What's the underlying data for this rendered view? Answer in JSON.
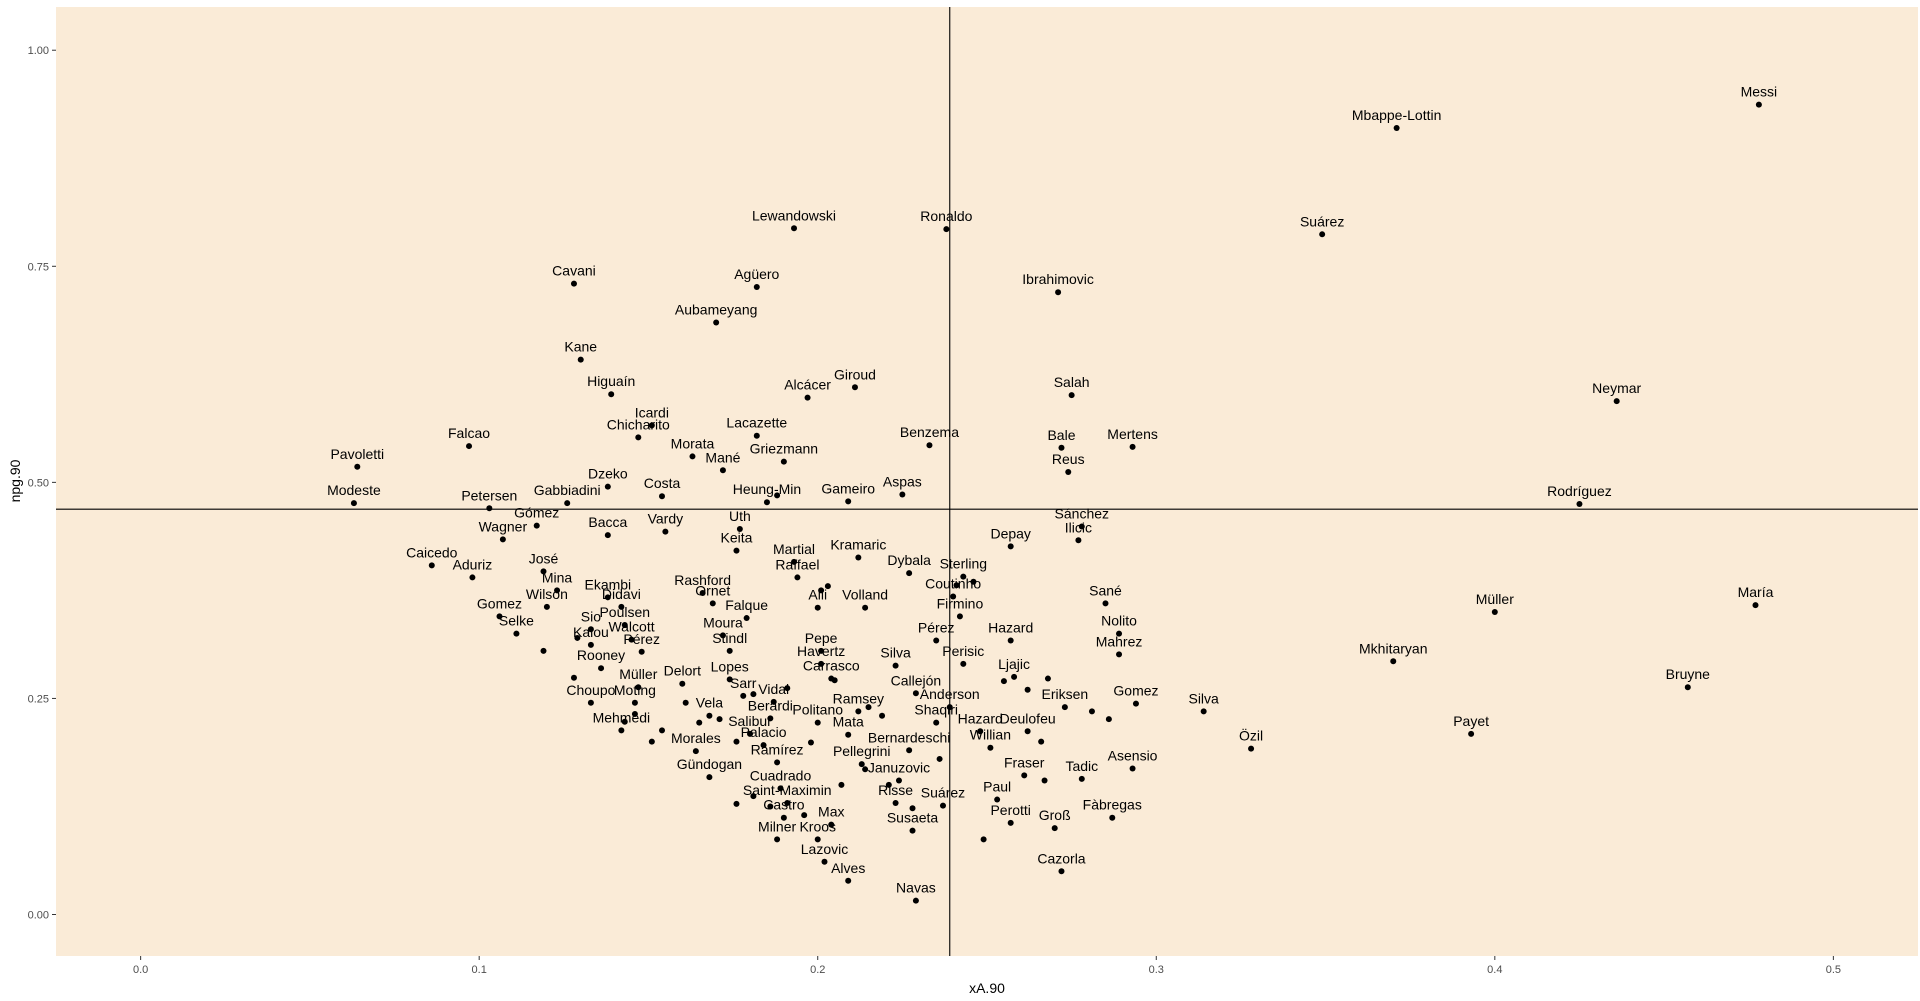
{
  "chart_data": {
    "type": "scatter",
    "title": "",
    "xlabel": "xA.90",
    "ylabel": "npg.90",
    "xlim": [
      -0.025,
      0.525
    ],
    "ylim": [
      -0.048,
      1.05
    ],
    "xticks": [
      0.0,
      0.1,
      0.2,
      0.3,
      0.4,
      0.5
    ],
    "xtick_labels": [
      "0.0",
      "0.1",
      "0.2",
      "0.3",
      "0.4",
      "0.5"
    ],
    "yticks": [
      0.0,
      0.25,
      0.5,
      0.75,
      1.0
    ],
    "ytick_labels": [
      "0.00",
      "0.25",
      "0.50",
      "0.75",
      "1.00"
    ],
    "reference_lines": {
      "vline_x": 0.239,
      "hline_y": 0.469
    },
    "background_color": "#faebd7",
    "point_color": "#000000",
    "grid": false,
    "legend": "none",
    "labeled_points": [
      {
        "label": "Messi",
        "x": 0.478,
        "y": 0.937
      },
      {
        "label": "Mbappe-Lottin",
        "x": 0.371,
        "y": 0.91
      },
      {
        "label": "Suárez",
        "x": 0.349,
        "y": 0.787
      },
      {
        "label": "Neymar",
        "x": 0.436,
        "y": 0.594
      },
      {
        "label": "Rodríguez",
        "x": 0.425,
        "y": 0.475
      },
      {
        "label": "Müller",
        "x": 0.4,
        "y": 0.35
      },
      {
        "label": "María",
        "x": 0.477,
        "y": 0.358
      },
      {
        "label": "Bruyne",
        "x": 0.457,
        "y": 0.263
      },
      {
        "label": "Mkhitaryan",
        "x": 0.37,
        "y": 0.293
      },
      {
        "label": "Payet",
        "x": 0.393,
        "y": 0.209
      },
      {
        "label": "Silva",
        "x": 0.314,
        "y": 0.235
      },
      {
        "label": "Özil",
        "x": 0.328,
        "y": 0.192
      },
      {
        "label": "Lewandowski",
        "x": 0.193,
        "y": 0.794
      },
      {
        "label": "Ronaldo",
        "x": 0.238,
        "y": 0.793
      },
      {
        "label": "Ibrahimovic",
        "x": 0.271,
        "y": 0.72
      },
      {
        "label": "Cavani",
        "x": 0.128,
        "y": 0.73
      },
      {
        "label": "Agüero",
        "x": 0.182,
        "y": 0.726
      },
      {
        "label": "Aubameyang",
        "x": 0.17,
        "y": 0.685
      },
      {
        "label": "Kane",
        "x": 0.13,
        "y": 0.642
      },
      {
        "label": "Giroud",
        "x": 0.211,
        "y": 0.61
      },
      {
        "label": "Higuaín",
        "x": 0.139,
        "y": 0.602
      },
      {
        "label": "Alcácer",
        "x": 0.197,
        "y": 0.598
      },
      {
        "label": "Salah",
        "x": 0.275,
        "y": 0.601
      },
      {
        "label": "Icardi",
        "x": 0.151,
        "y": 0.566
      },
      {
        "label": "Chicharito",
        "x": 0.147,
        "y": 0.552
      },
      {
        "label": "Lacazette",
        "x": 0.182,
        "y": 0.554
      },
      {
        "label": "Falcao",
        "x": 0.097,
        "y": 0.542
      },
      {
        "label": "Benzema",
        "x": 0.233,
        "y": 0.543
      },
      {
        "label": "Bale",
        "x": 0.272,
        "y": 0.54
      },
      {
        "label": "Mertens",
        "x": 0.293,
        "y": 0.541
      },
      {
        "label": "Morata",
        "x": 0.163,
        "y": 0.53
      },
      {
        "label": "Griezmann",
        "x": 0.19,
        "y": 0.524
      },
      {
        "label": "Pavoletti",
        "x": 0.064,
        "y": 0.518
      },
      {
        "label": "Reus",
        "x": 0.274,
        "y": 0.512
      },
      {
        "label": "Mané",
        "x": 0.172,
        "y": 0.514
      },
      {
        "label": "Dzeko",
        "x": 0.138,
        "y": 0.495
      },
      {
        "label": "Costa",
        "x": 0.154,
        "y": 0.484
      },
      {
        "label": "Aspas",
        "x": 0.225,
        "y": 0.486
      },
      {
        "label": "Heung-Min",
        "x": 0.185,
        "y": 0.477
      },
      {
        "label": "Gameiro",
        "x": 0.209,
        "y": 0.478
      },
      {
        "label": "Modeste",
        "x": 0.063,
        "y": 0.476
      },
      {
        "label": "Petersen",
        "x": 0.103,
        "y": 0.47
      },
      {
        "label": "Gabbiadini",
        "x": 0.126,
        "y": 0.476
      },
      {
        "label": "Gómez",
        "x": 0.117,
        "y": 0.45
      },
      {
        "label": "Wagner",
        "x": 0.107,
        "y": 0.434
      },
      {
        "label": "Bacca",
        "x": 0.138,
        "y": 0.439
      },
      {
        "label": "Vardy",
        "x": 0.155,
        "y": 0.443
      },
      {
        "label": "Uth",
        "x": 0.177,
        "y": 0.446
      },
      {
        "label": "Sánchez",
        "x": 0.278,
        "y": 0.449
      },
      {
        "label": "Ilicic",
        "x": 0.277,
        "y": 0.433
      },
      {
        "label": "Depay",
        "x": 0.257,
        "y": 0.426
      },
      {
        "label": "Keita",
        "x": 0.176,
        "y": 0.421
      },
      {
        "label": "Caicedo",
        "x": 0.086,
        "y": 0.404
      },
      {
        "label": "Martial",
        "x": 0.193,
        "y": 0.408
      },
      {
        "label": "Kramaric",
        "x": 0.212,
        "y": 0.413
      },
      {
        "label": "Raffael",
        "x": 0.194,
        "y": 0.39
      },
      {
        "label": "Dybala",
        "x": 0.227,
        "y": 0.395
      },
      {
        "label": "Sterling",
        "x": 0.243,
        "y": 0.391
      },
      {
        "label": "Aduriz",
        "x": 0.098,
        "y": 0.39
      },
      {
        "label": "José",
        "x": 0.119,
        "y": 0.397
      },
      {
        "label": "Mina",
        "x": 0.123,
        "y": 0.375
      },
      {
        "label": "Ekambi",
        "x": 0.138,
        "y": 0.367
      },
      {
        "label": "Rashford",
        "x": 0.166,
        "y": 0.372
      },
      {
        "label": "Coutinho",
        "x": 0.24,
        "y": 0.368
      },
      {
        "label": "Didavi",
        "x": 0.142,
        "y": 0.356
      },
      {
        "label": "Ornet",
        "x": 0.169,
        "y": 0.36
      },
      {
        "label": "Wilson",
        "x": 0.12,
        "y": 0.356
      },
      {
        "label": "Alli",
        "x": 0.2,
        "y": 0.355
      },
      {
        "label": "Volland",
        "x": 0.214,
        "y": 0.355
      },
      {
        "label": "Sané",
        "x": 0.285,
        "y": 0.36
      },
      {
        "label": "Gomez",
        "x": 0.106,
        "y": 0.345
      },
      {
        "label": "Firmino",
        "x": 0.242,
        "y": 0.345
      },
      {
        "label": "Falque",
        "x": 0.179,
        "y": 0.343
      },
      {
        "label": "Poulsen",
        "x": 0.143,
        "y": 0.335
      },
      {
        "label": "Selke",
        "x": 0.111,
        "y": 0.325
      },
      {
        "label": "Sio",
        "x": 0.133,
        "y": 0.33
      },
      {
        "label": "Walcott",
        "x": 0.145,
        "y": 0.318
      },
      {
        "label": "Moura",
        "x": 0.172,
        "y": 0.323
      },
      {
        "label": "Nolito",
        "x": 0.289,
        "y": 0.325
      },
      {
        "label": "Kalou",
        "x": 0.133,
        "y": 0.312
      },
      {
        "label": "Pérez",
        "x": 0.148,
        "y": 0.304
      },
      {
        "label": "Pérez",
        "x": 0.235,
        "y": 0.317
      },
      {
        "label": "Hazard",
        "x": 0.257,
        "y": 0.317
      },
      {
        "label": "Pepe",
        "x": 0.201,
        "y": 0.305
      },
      {
        "label": "Stindl",
        "x": 0.174,
        "y": 0.305
      },
      {
        "label": "Mahrez",
        "x": 0.289,
        "y": 0.301
      },
      {
        "label": "Havertz",
        "x": 0.201,
        "y": 0.29
      },
      {
        "label": "Silva",
        "x": 0.223,
        "y": 0.288
      },
      {
        "label": "Perisic",
        "x": 0.243,
        "y": 0.29
      },
      {
        "label": "Rooney",
        "x": 0.136,
        "y": 0.285
      },
      {
        "label": "Carrasco",
        "x": 0.204,
        "y": 0.273
      },
      {
        "label": "Lopes",
        "x": 0.174,
        "y": 0.272
      },
      {
        "label": "Ljajic",
        "x": 0.258,
        "y": 0.275
      },
      {
        "label": "Delort",
        "x": 0.16,
        "y": 0.267
      },
      {
        "label": "Müller",
        "x": 0.147,
        "y": 0.263
      },
      {
        "label": "Sarr",
        "x": 0.178,
        "y": 0.253
      },
      {
        "label": "Callejón",
        "x": 0.229,
        "y": 0.256
      },
      {
        "label": "Moting",
        "x": 0.146,
        "y": 0.245
      },
      {
        "label": "Choupo",
        "x": 0.133,
        "y": 0.245
      },
      {
        "label": "Vidal",
        "x": 0.187,
        "y": 0.246
      },
      {
        "label": "Anderson",
        "x": 0.239,
        "y": 0.24
      },
      {
        "label": "Eriksen",
        "x": 0.273,
        "y": 0.24
      },
      {
        "label": "Gomez",
        "x": 0.294,
        "y": 0.244
      },
      {
        "label": "Vela",
        "x": 0.168,
        "y": 0.23
      },
      {
        "label": "Ramsey",
        "x": 0.212,
        "y": 0.235
      },
      {
        "label": "Berardi",
        "x": 0.186,
        "y": 0.227
      },
      {
        "label": "Politano",
        "x": 0.2,
        "y": 0.222
      },
      {
        "label": "Shaqiri",
        "x": 0.235,
        "y": 0.222
      },
      {
        "label": "Mehmedi",
        "x": 0.142,
        "y": 0.213
      },
      {
        "label": "Salibur",
        "x": 0.18,
        "y": 0.209
      },
      {
        "label": "Mata",
        "x": 0.209,
        "y": 0.208
      },
      {
        "label": "Hazard",
        "x": 0.248,
        "y": 0.212
      },
      {
        "label": "Deulofeu",
        "x": 0.262,
        "y": 0.212
      },
      {
        "label": "Palacio",
        "x": 0.184,
        "y": 0.196
      },
      {
        "label": "Bernardeschi",
        "x": 0.227,
        "y": 0.19
      },
      {
        "label": "Willian",
        "x": 0.251,
        "y": 0.193
      },
      {
        "label": "Morales",
        "x": 0.164,
        "y": 0.189
      },
      {
        "label": "Ramírez",
        "x": 0.188,
        "y": 0.176
      },
      {
        "label": "Pellegrini",
        "x": 0.213,
        "y": 0.174
      },
      {
        "label": "Asensio",
        "x": 0.293,
        "y": 0.169
      },
      {
        "label": "Fraser",
        "x": 0.261,
        "y": 0.161
      },
      {
        "label": "Tadic",
        "x": 0.278,
        "y": 0.157
      },
      {
        "label": "Januzovic",
        "x": 0.224,
        "y": 0.155
      },
      {
        "label": "Gündogan",
        "x": 0.168,
        "y": 0.159
      },
      {
        "label": "Cuadrado",
        "x": 0.189,
        "y": 0.146
      },
      {
        "label": "Risse",
        "x": 0.223,
        "y": 0.129
      },
      {
        "label": "Saint-Maximin",
        "x": 0.191,
        "y": 0.129
      },
      {
        "label": "Paul",
        "x": 0.253,
        "y": 0.133
      },
      {
        "label": "Suárez",
        "x": 0.237,
        "y": 0.126
      },
      {
        "label": "Castro",
        "x": 0.19,
        "y": 0.112
      },
      {
        "label": "Fàbregas",
        "x": 0.287,
        "y": 0.112
      },
      {
        "label": "Perotti",
        "x": 0.257,
        "y": 0.106
      },
      {
        "label": "Max",
        "x": 0.204,
        "y": 0.104
      },
      {
        "label": "Groß",
        "x": 0.27,
        "y": 0.1
      },
      {
        "label": "Susaeta",
        "x": 0.228,
        "y": 0.097
      },
      {
        "label": "Milner",
        "x": 0.188,
        "y": 0.087
      },
      {
        "label": "Kroos",
        "x": 0.2,
        "y": 0.087
      },
      {
        "label": "Lazovic",
        "x": 0.202,
        "y": 0.061
      },
      {
        "label": "Cazorla",
        "x": 0.272,
        "y": 0.05
      },
      {
        "label": "Alves",
        "x": 0.209,
        "y": 0.039
      },
      {
        "label": "Navas",
        "x": 0.229,
        "y": 0.016
      }
    ],
    "unlabeled_points": [
      [
        0.236,
        0.18
      ],
      [
        0.249,
        0.087
      ],
      [
        0.281,
        0.235
      ],
      [
        0.286,
        0.226
      ],
      [
        0.262,
        0.26
      ],
      [
        0.268,
        0.273
      ],
      [
        0.255,
        0.27
      ],
      [
        0.246,
        0.385
      ],
      [
        0.241,
        0.381
      ],
      [
        0.219,
        0.23
      ],
      [
        0.215,
        0.24
      ],
      [
        0.198,
        0.199
      ],
      [
        0.154,
        0.213
      ],
      [
        0.161,
        0.245
      ],
      [
        0.165,
        0.222
      ],
      [
        0.171,
        0.226
      ],
      [
        0.181,
        0.255
      ],
      [
        0.191,
        0.262
      ],
      [
        0.151,
        0.2
      ],
      [
        0.146,
        0.232
      ],
      [
        0.143,
        0.223
      ],
      [
        0.128,
        0.274
      ],
      [
        0.119,
        0.305
      ],
      [
        0.129,
        0.32
      ],
      [
        0.176,
        0.2
      ],
      [
        0.181,
        0.137
      ],
      [
        0.186,
        0.125
      ],
      [
        0.196,
        0.115
      ],
      [
        0.207,
        0.15
      ],
      [
        0.214,
        0.168
      ],
      [
        0.176,
        0.128
      ],
      [
        0.221,
        0.15
      ],
      [
        0.228,
        0.123
      ],
      [
        0.201,
        0.375
      ],
      [
        0.203,
        0.38
      ],
      [
        0.188,
        0.485
      ],
      [
        0.267,
        0.155
      ],
      [
        0.266,
        0.2
      ],
      [
        0.205,
        0.271
      ]
    ]
  }
}
